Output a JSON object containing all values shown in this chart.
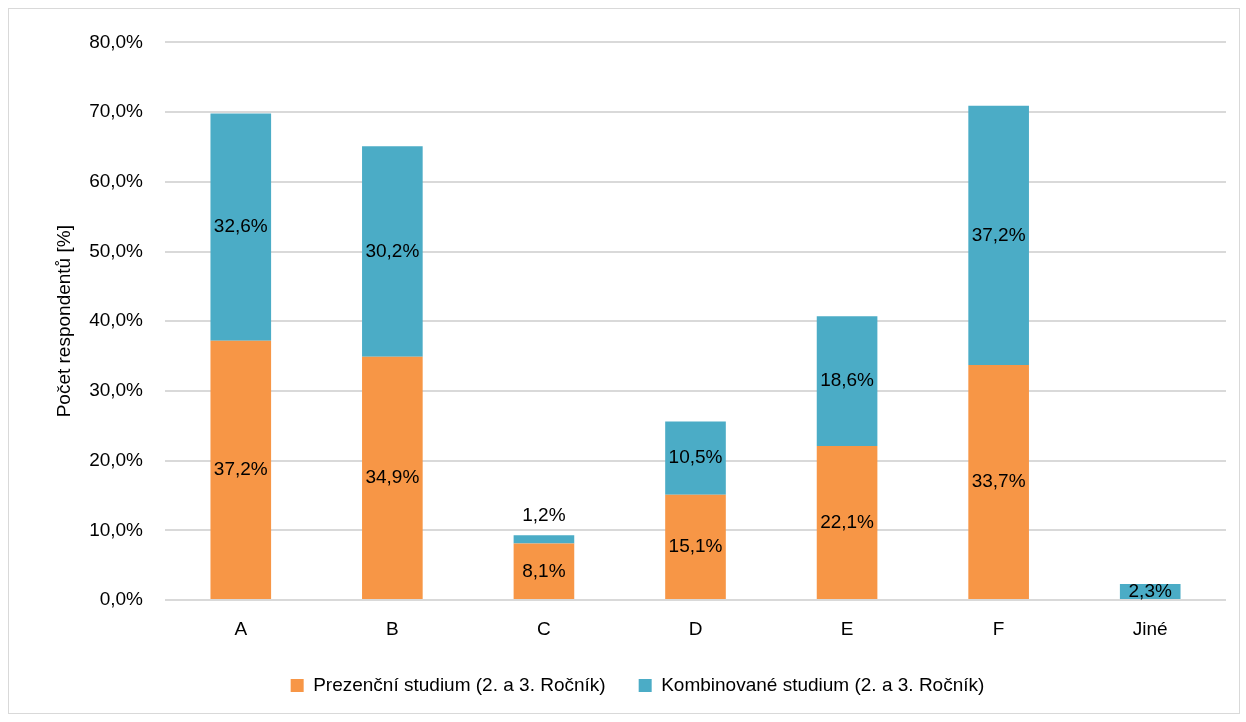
{
  "chart_data": {
    "type": "bar",
    "ylabel": "Počet respondentů [%]",
    "categories": [
      "A",
      "B",
      "C",
      "D",
      "E",
      "F",
      "Jiné"
    ],
    "series": [
      {
        "name": "Prezenční studium (2. a 3. Ročník)",
        "color": "#f79646",
        "values": [
          37.2,
          34.9,
          8.1,
          15.1,
          22.1,
          33.7,
          null
        ],
        "value_labels": [
          "37,2%",
          "34,9%",
          "8,1%",
          "15,1%",
          "22,1%",
          "33,7%",
          null
        ]
      },
      {
        "name": "Kombinované studium (2. a 3. Ročník)",
        "color": "#4bacc6",
        "values": [
          32.6,
          30.2,
          1.2,
          10.5,
          18.6,
          37.2,
          2.3
        ],
        "value_labels": [
          "32,6%",
          "30,2%",
          "1,2%",
          "10,5%",
          "18,6%",
          "37,2%",
          "2,3%"
        ]
      }
    ],
    "stacked": true,
    "ylim": [
      0,
      80
    ],
    "yticks": [
      {
        "value": 0,
        "label": "0,0%"
      },
      {
        "value": 10,
        "label": "10,0%"
      },
      {
        "value": 20,
        "label": "20,0%"
      },
      {
        "value": 30,
        "label": "30,0%"
      },
      {
        "value": 40,
        "label": "40,0%"
      },
      {
        "value": 50,
        "label": "50,0%"
      },
      {
        "value": 60,
        "label": "60,0%"
      },
      {
        "value": 70,
        "label": "70,0%"
      },
      {
        "value": 80,
        "label": "80,0%"
      }
    ],
    "grid": "y",
    "legend": "bottom"
  }
}
